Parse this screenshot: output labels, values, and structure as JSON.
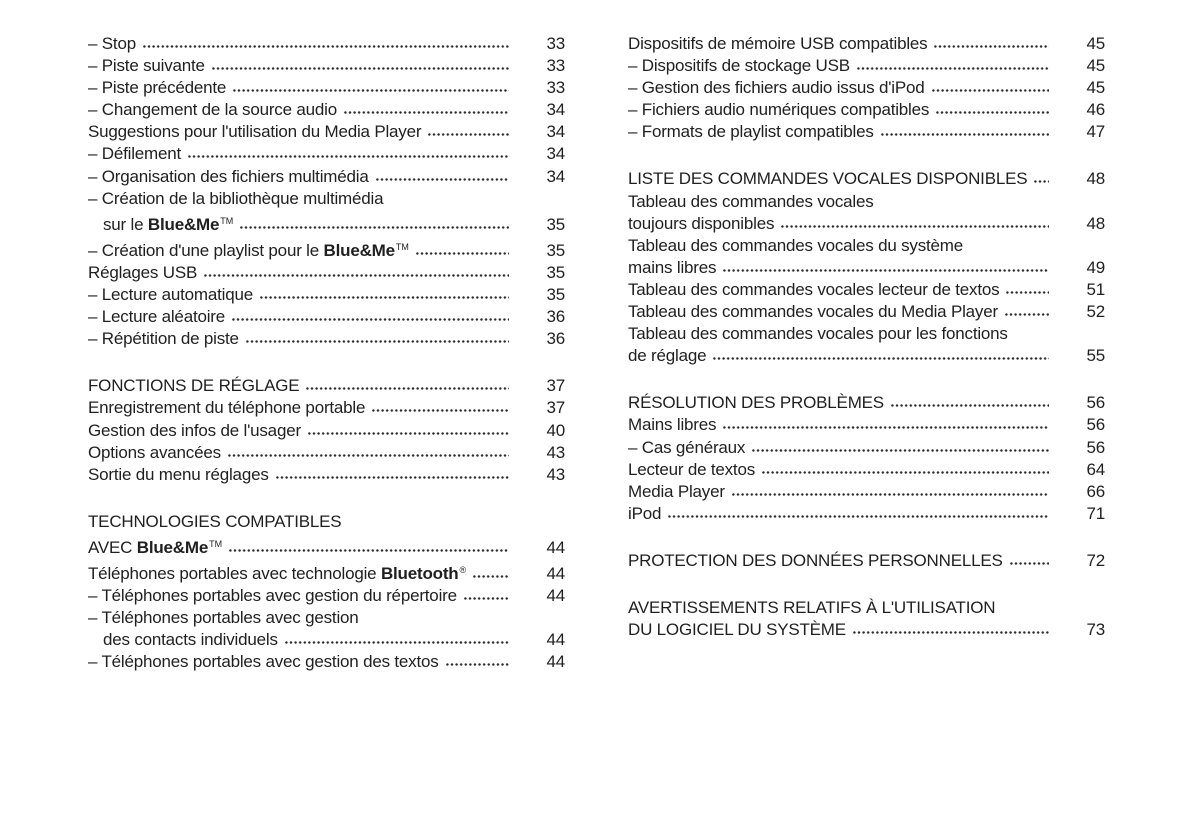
{
  "page": {
    "background": "#ffffff",
    "text_color": "#1f1f1f",
    "dot_color": "#2a2a2a"
  },
  "toc": {
    "columns": [
      {
        "name": "left",
        "groups": [
          {
            "entries": [
              {
                "lines": [
                  {
                    "segments": [
                      {
                        "text": "– Stop"
                      }
                    ],
                    "page": "33"
                  }
                ]
              },
              {
                "lines": [
                  {
                    "segments": [
                      {
                        "text": "– Piste suivante"
                      }
                    ],
                    "page": "33"
                  }
                ]
              },
              {
                "lines": [
                  {
                    "segments": [
                      {
                        "text": "– Piste précédente"
                      }
                    ],
                    "page": "33"
                  }
                ]
              },
              {
                "lines": [
                  {
                    "segments": [
                      {
                        "text": "– Changement de la source audio"
                      }
                    ],
                    "page": "34"
                  }
                ]
              },
              {
                "lines": [
                  {
                    "segments": [
                      {
                        "text": "Suggestions pour l'utilisation du Media Player"
                      }
                    ],
                    "page": "34"
                  }
                ]
              },
              {
                "lines": [
                  {
                    "segments": [
                      {
                        "text": "– Défilement"
                      }
                    ],
                    "page": "34"
                  }
                ]
              },
              {
                "lines": [
                  {
                    "segments": [
                      {
                        "text": "– Organisation des fichiers multimédia"
                      }
                    ],
                    "page": "34"
                  }
                ]
              },
              {
                "lines": [
                  {
                    "segments": [
                      {
                        "text": "– Création de la bibliothèque multimédia"
                      }
                    ]
                  },
                  {
                    "indent": true,
                    "segments": [
                      {
                        "text": "sur le "
                      },
                      {
                        "text": "Blue&Me",
                        "bold": true
                      },
                      {
                        "text": "TM",
                        "sup": true
                      }
                    ],
                    "page": "35"
                  }
                ]
              },
              {
                "lines": [
                  {
                    "segments": [
                      {
                        "text": "– Création d'une playlist pour le "
                      },
                      {
                        "text": "Blue&Me",
                        "bold": true
                      },
                      {
                        "text": "TM",
                        "sup": true
                      }
                    ],
                    "page": "35"
                  }
                ]
              },
              {
                "lines": [
                  {
                    "segments": [
                      {
                        "text": "Réglages USB"
                      }
                    ],
                    "page": "35"
                  }
                ]
              },
              {
                "lines": [
                  {
                    "segments": [
                      {
                        "text": "– Lecture automatique"
                      }
                    ],
                    "page": "35"
                  }
                ]
              },
              {
                "lines": [
                  {
                    "segments": [
                      {
                        "text": "– Lecture aléatoire"
                      }
                    ],
                    "page": "36"
                  }
                ]
              },
              {
                "lines": [
                  {
                    "segments": [
                      {
                        "text": "– Répétition de piste"
                      }
                    ],
                    "page": "36"
                  }
                ]
              }
            ]
          },
          {
            "entries": [
              {
                "lines": [
                  {
                    "segments": [
                      {
                        "text": "FONCTIONS DE RÉGLAGE"
                      }
                    ],
                    "page": "37"
                  }
                ]
              },
              {
                "lines": [
                  {
                    "segments": [
                      {
                        "text": "Enregistrement du téléphone portable"
                      }
                    ],
                    "page": "37"
                  }
                ]
              },
              {
                "lines": [
                  {
                    "segments": [
                      {
                        "text": "Gestion des infos de l'usager"
                      }
                    ],
                    "page": "40"
                  }
                ]
              },
              {
                "lines": [
                  {
                    "segments": [
                      {
                        "text": "Options avancées"
                      }
                    ],
                    "page": "43"
                  }
                ]
              },
              {
                "lines": [
                  {
                    "segments": [
                      {
                        "text": "Sortie du menu réglages"
                      }
                    ],
                    "page": "43"
                  }
                ]
              }
            ]
          },
          {
            "entries": [
              {
                "lines": [
                  {
                    "segments": [
                      {
                        "text": "TECHNOLOGIES COMPATIBLES"
                      }
                    ]
                  },
                  {
                    "segments": [
                      {
                        "text": "AVEC "
                      },
                      {
                        "text": "Blue&Me",
                        "bold": true
                      },
                      {
                        "text": "TM",
                        "sup": true
                      }
                    ],
                    "page": "44"
                  }
                ]
              },
              {
                "lines": [
                  {
                    "segments": [
                      {
                        "text": "Téléphones portables avec technologie "
                      },
                      {
                        "text": "Bluetooth",
                        "bold": true
                      },
                      {
                        "text": "®",
                        "sup": true
                      }
                    ],
                    "page": "44"
                  }
                ]
              },
              {
                "lines": [
                  {
                    "segments": [
                      {
                        "text": "– Téléphones portables avec gestion du répertoire"
                      }
                    ],
                    "page": "44"
                  }
                ]
              },
              {
                "lines": [
                  {
                    "segments": [
                      {
                        "text": "– Téléphones portables avec gestion"
                      }
                    ]
                  },
                  {
                    "indent": true,
                    "segments": [
                      {
                        "text": "des contacts individuels"
                      }
                    ],
                    "page": "44"
                  }
                ]
              },
              {
                "lines": [
                  {
                    "segments": [
                      {
                        "text": "– Téléphones portables avec gestion des textos"
                      }
                    ],
                    "page": "44"
                  }
                ]
              }
            ]
          }
        ]
      },
      {
        "name": "right",
        "groups": [
          {
            "entries": [
              {
                "lines": [
                  {
                    "segments": [
                      {
                        "text": "Dispositifs de mémoire USB compatibles"
                      }
                    ],
                    "page": "45"
                  }
                ]
              },
              {
                "lines": [
                  {
                    "segments": [
                      {
                        "text": "– Dispositifs de stockage USB"
                      }
                    ],
                    "page": "45"
                  }
                ]
              },
              {
                "lines": [
                  {
                    "segments": [
                      {
                        "text": "– Gestion des fichiers audio issus d'iPod"
                      }
                    ],
                    "page": "45"
                  }
                ]
              },
              {
                "lines": [
                  {
                    "segments": [
                      {
                        "text": "– Fichiers audio numériques compatibles"
                      }
                    ],
                    "page": "46"
                  }
                ]
              },
              {
                "lines": [
                  {
                    "segments": [
                      {
                        "text": "– Formats de playlist compatibles"
                      }
                    ],
                    "page": "47"
                  }
                ]
              }
            ]
          },
          {
            "entries": [
              {
                "lines": [
                  {
                    "segments": [
                      {
                        "text": "LISTE DES COMMANDES VOCALES DISPONIBLES"
                      }
                    ],
                    "page": "48"
                  }
                ]
              },
              {
                "lines": [
                  {
                    "segments": [
                      {
                        "text": "Tableau des commandes vocales"
                      }
                    ]
                  },
                  {
                    "segments": [
                      {
                        "text": "toujours disponibles"
                      }
                    ],
                    "page": "48"
                  }
                ]
              },
              {
                "lines": [
                  {
                    "segments": [
                      {
                        "text": "Tableau des commandes vocales du système"
                      }
                    ]
                  },
                  {
                    "segments": [
                      {
                        "text": "mains libres"
                      }
                    ],
                    "page": "49"
                  }
                ]
              },
              {
                "lines": [
                  {
                    "segments": [
                      {
                        "text": "Tableau des commandes vocales lecteur de textos"
                      }
                    ],
                    "page": "51"
                  }
                ]
              },
              {
                "lines": [
                  {
                    "segments": [
                      {
                        "text": "Tableau des commandes vocales du Media Player"
                      }
                    ],
                    "page": "52"
                  }
                ]
              },
              {
                "lines": [
                  {
                    "segments": [
                      {
                        "text": "Tableau des commandes vocales pour les fonctions"
                      }
                    ]
                  },
                  {
                    "segments": [
                      {
                        "text": "de réglage"
                      }
                    ],
                    "page": "55"
                  }
                ]
              }
            ]
          },
          {
            "entries": [
              {
                "lines": [
                  {
                    "segments": [
                      {
                        "text": "RÉSOLUTION DES PROBLÈMES"
                      }
                    ],
                    "page": "56"
                  }
                ]
              },
              {
                "lines": [
                  {
                    "segments": [
                      {
                        "text": "Mains libres"
                      }
                    ],
                    "page": "56"
                  }
                ]
              },
              {
                "lines": [
                  {
                    "segments": [
                      {
                        "text": "– Cas généraux"
                      }
                    ],
                    "page": "56"
                  }
                ]
              },
              {
                "lines": [
                  {
                    "segments": [
                      {
                        "text": "Lecteur de textos"
                      }
                    ],
                    "page": "64"
                  }
                ]
              },
              {
                "lines": [
                  {
                    "segments": [
                      {
                        "text": "Media Player"
                      }
                    ],
                    "page": "66"
                  }
                ]
              },
              {
                "lines": [
                  {
                    "segments": [
                      {
                        "text": "iPod"
                      }
                    ],
                    "page": "71"
                  }
                ]
              }
            ]
          },
          {
            "entries": [
              {
                "lines": [
                  {
                    "segments": [
                      {
                        "text": "PROTECTION DES DONNÉES PERSONNELLES"
                      }
                    ],
                    "page": "72"
                  }
                ]
              }
            ]
          },
          {
            "entries": [
              {
                "lines": [
                  {
                    "segments": [
                      {
                        "text": "AVERTISSEMENTS RELATIFS À L'UTILISATION"
                      }
                    ]
                  },
                  {
                    "segments": [
                      {
                        "text": "DU LOGICIEL DU SYSTÈME"
                      }
                    ],
                    "page": "73"
                  }
                ]
              }
            ]
          }
        ]
      }
    ]
  }
}
